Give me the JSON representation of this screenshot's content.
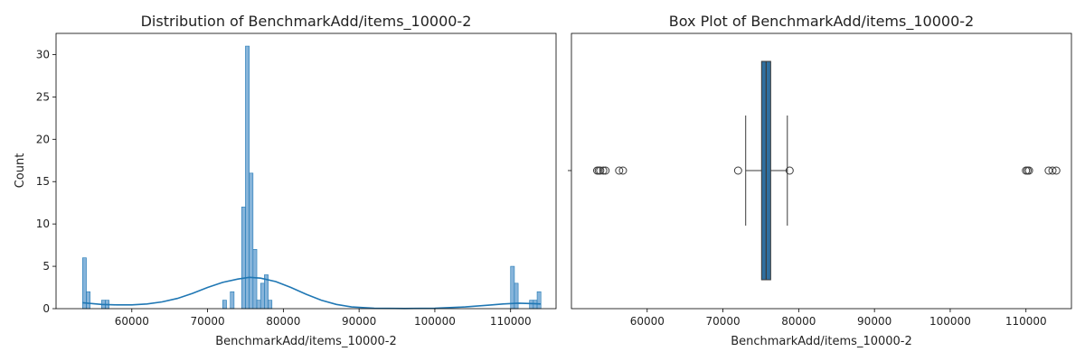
{
  "chart_data": [
    {
      "type": "histogram",
      "title": "Distribution of BenchmarkAdd/items_10000-2",
      "xlabel": "BenchmarkAdd/items_10000-2",
      "ylabel": "Count",
      "xlim": [
        50000,
        116000
      ],
      "ylim": [
        0,
        32.5
      ],
      "xticks": [
        60000,
        70000,
        80000,
        90000,
        100000,
        110000
      ],
      "yticks": [
        0,
        5,
        10,
        15,
        20,
        25,
        30
      ],
      "bar_color": "#1f77b4",
      "bar_fill": "#7fb0d8",
      "bin_width": 500,
      "bins": [
        {
          "x": 53500,
          "count": 6
        },
        {
          "x": 54000,
          "count": 2
        },
        {
          "x": 56000,
          "count": 1
        },
        {
          "x": 56500,
          "count": 1
        },
        {
          "x": 72000,
          "count": 1
        },
        {
          "x": 73000,
          "count": 2
        },
        {
          "x": 74500,
          "count": 12
        },
        {
          "x": 75000,
          "count": 31
        },
        {
          "x": 75500,
          "count": 16
        },
        {
          "x": 76000,
          "count": 7
        },
        {
          "x": 76500,
          "count": 1
        },
        {
          "x": 77000,
          "count": 3
        },
        {
          "x": 77500,
          "count": 4
        },
        {
          "x": 78000,
          "count": 1
        },
        {
          "x": 110000,
          "count": 5
        },
        {
          "x": 110500,
          "count": 3
        },
        {
          "x": 112500,
          "count": 1
        },
        {
          "x": 113000,
          "count": 1
        },
        {
          "x": 113500,
          "count": 2
        }
      ],
      "kde_points": [
        [
          53500,
          0.7
        ],
        [
          56000,
          0.5
        ],
        [
          58000,
          0.45
        ],
        [
          60000,
          0.45
        ],
        [
          62000,
          0.55
        ],
        [
          64000,
          0.8
        ],
        [
          66000,
          1.2
        ],
        [
          68000,
          1.8
        ],
        [
          70000,
          2.5
        ],
        [
          72000,
          3.1
        ],
        [
          74000,
          3.5
        ],
        [
          75500,
          3.7
        ],
        [
          77000,
          3.6
        ],
        [
          79000,
          3.2
        ],
        [
          81000,
          2.5
        ],
        [
          83000,
          1.7
        ],
        [
          85000,
          1.0
        ],
        [
          87000,
          0.5
        ],
        [
          89000,
          0.2
        ],
        [
          92000,
          0.05
        ],
        [
          96000,
          0.02
        ],
        [
          100000,
          0.05
        ],
        [
          104000,
          0.2
        ],
        [
          107000,
          0.4
        ],
        [
          109000,
          0.55
        ],
        [
          111000,
          0.65
        ],
        [
          113000,
          0.6
        ],
        [
          114000,
          0.55
        ]
      ]
    },
    {
      "type": "box",
      "title": "Box Plot of BenchmarkAdd/items_10000-2",
      "xlabel": "BenchmarkAdd/items_10000-2",
      "xlim": [
        50000,
        116000
      ],
      "xticks": [
        60000,
        70000,
        80000,
        90000,
        100000,
        110000
      ],
      "box_color": "#2f6f9f",
      "q1": 75100,
      "median": 75700,
      "q3": 76300,
      "whisker_low": 73000,
      "whisker_high": 78500,
      "outliers": [
        53400,
        53600,
        53800,
        54200,
        54500,
        56300,
        56800,
        72000,
        78800,
        110000,
        110200,
        110400,
        113000,
        113500,
        114000
      ]
    }
  ]
}
